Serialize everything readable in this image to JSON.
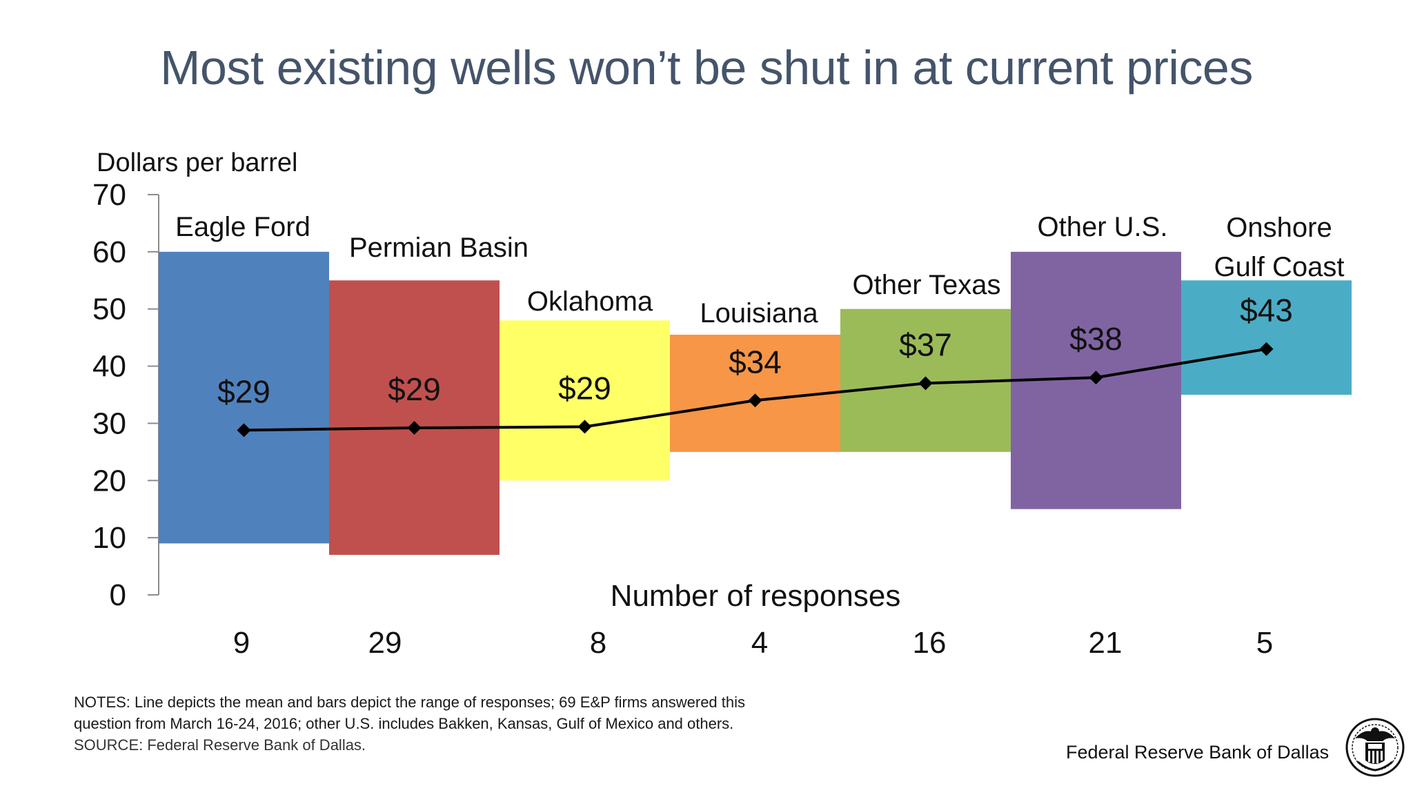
{
  "title": "Most existing wells won’t be shut in at current prices",
  "notes": {
    "line1": "NOTES: Line depicts the mean and bars depict the range of responses; 69 E&P firms answered this",
    "line2": "question from March 16-24, 2016; other U.S. includes Bakken, Kansas, Gulf of Mexico and others.",
    "source": "SOURCE: Federal Reserve Bank of Dallas."
  },
  "footer": {
    "org_label": "Federal Reserve Bank of Dallas",
    "seal_icon": "federal-reserve-seal-icon"
  },
  "chart_data": {
    "type": "bar",
    "subtype": "floating-range-with-mean-line",
    "ylabel": "Dollars per barrel",
    "xlabel": "Number of responses",
    "ylim": [
      0,
      70
    ],
    "yticks": [
      0,
      10,
      20,
      30,
      40,
      50,
      60,
      70
    ],
    "grid": false,
    "categories": [
      {
        "name": [
          "Eagle Ford"
        ],
        "low": 9,
        "high": 60,
        "mean": 28.8,
        "mean_label": "$29",
        "responses": "9",
        "color": "#4f81bd"
      },
      {
        "name": [
          "Permian Basin"
        ],
        "low": 7,
        "high": 55,
        "mean": 29.2,
        "mean_label": "$29",
        "responses": "29",
        "color": "#c0504d"
      },
      {
        "name": [
          "Oklahoma"
        ],
        "low": 20,
        "high": 48,
        "mean": 29.4,
        "mean_label": "$29",
        "responses": "8",
        "color": "#ffff66"
      },
      {
        "name": [
          "Louisiana"
        ],
        "low": 25,
        "high": 45.5,
        "mean": 34,
        "mean_label": "$34",
        "responses": "4",
        "color": "#f79646"
      },
      {
        "name": [
          "Other Texas"
        ],
        "low": 25,
        "high": 50,
        "mean": 37,
        "mean_label": "$37",
        "responses": "16",
        "color": "#9bbb59"
      },
      {
        "name": [
          "Other U.S."
        ],
        "low": 15,
        "high": 60,
        "mean": 38,
        "mean_label": "$38",
        "responses": "21",
        "color": "#8064a2"
      },
      {
        "name": [
          "Onshore",
          "Gulf Coast"
        ],
        "low": 35,
        "high": 55,
        "mean": 43,
        "mean_label": "$43",
        "responses": "5",
        "color": "#4bacc6"
      }
    ]
  }
}
